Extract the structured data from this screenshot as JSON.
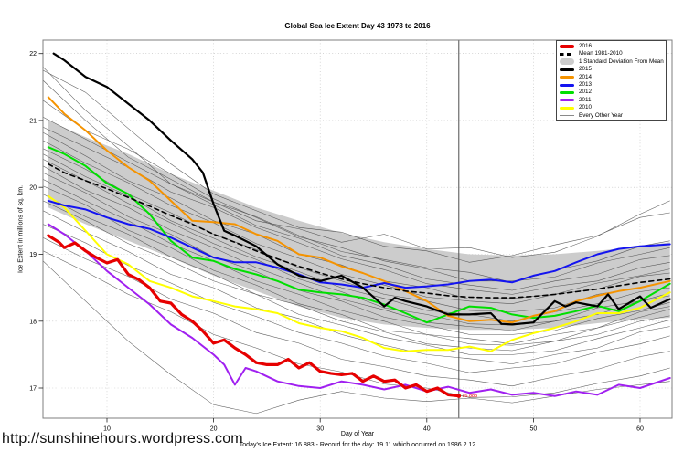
{
  "title": "Global Sea Ice Extent Day 43 1978 to 2016",
  "url_text": "http://sunshinehours.wordpress.com",
  "chart_data": {
    "type": "line",
    "title": "Global Sea Ice Extent Day 43 1978 to 2016",
    "xlabel": "Day of Year",
    "ylabel": "Ice Extent in millions of sq. km.",
    "caption": "Today's Ice Extent: 16.883  - Record for the day: 19.11 which occurred on 1986 2 12",
    "xlim": [
      4,
      63
    ],
    "ylim": [
      16.55,
      22.2
    ],
    "xticks": [
      10,
      20,
      30,
      40,
      50,
      60
    ],
    "yticks": [
      17,
      18,
      19,
      20,
      21,
      22
    ],
    "grid": "dotted",
    "vline_day": 43,
    "annotation": {
      "text": "16.883",
      "day": 43,
      "value": 16.883,
      "color": "#e60000"
    },
    "band": {
      "label": "1 Standard Deviation From Mean",
      "color": "#cccccc",
      "days": [
        4.5,
        8,
        12,
        16,
        20,
        24,
        28,
        32,
        36,
        40,
        44,
        48,
        52,
        56,
        60,
        62.8
      ],
      "top": [
        21.0,
        20.75,
        20.5,
        20.2,
        19.95,
        19.7,
        19.5,
        19.32,
        19.18,
        19.08,
        19.0,
        18.98,
        19.0,
        19.05,
        19.12,
        19.18
      ],
      "bottom": [
        19.7,
        19.45,
        19.2,
        18.95,
        18.68,
        18.45,
        18.22,
        18.05,
        17.95,
        17.9,
        17.87,
        17.87,
        17.9,
        17.97,
        18.03,
        18.05
      ]
    },
    "series": [
      {
        "name": "2010",
        "color": "#ffff00",
        "width": 2.0,
        "dash": "",
        "days": [
          4.5,
          6,
          8,
          10,
          12,
          14,
          16,
          18,
          20,
          22,
          24,
          26,
          28,
          30,
          32,
          34,
          36,
          38,
          40,
          42,
          44,
          46,
          48,
          50,
          52,
          54,
          56,
          58,
          60,
          62.8
        ],
        "values": [
          19.87,
          19.7,
          19.35,
          19.0,
          18.85,
          18.6,
          18.5,
          18.37,
          18.3,
          18.22,
          18.18,
          18.12,
          17.97,
          17.9,
          17.85,
          17.75,
          17.6,
          17.55,
          17.57,
          17.57,
          17.62,
          17.55,
          17.72,
          17.82,
          17.9,
          18.0,
          18.12,
          18.12,
          18.2,
          18.43
        ]
      },
      {
        "name": "2011",
        "color": "#a020f0",
        "width": 2.0,
        "dash": "",
        "days": [
          4.5,
          6,
          8,
          10,
          12,
          14,
          16,
          18,
          20,
          21,
          22,
          23,
          24,
          26,
          28,
          30,
          32,
          34,
          36,
          38,
          40,
          42,
          44,
          46,
          48,
          50,
          52,
          54,
          56,
          58,
          60,
          62.8
        ],
        "values": [
          19.45,
          19.3,
          19.05,
          18.75,
          18.5,
          18.25,
          17.95,
          17.75,
          17.5,
          17.35,
          17.05,
          17.3,
          17.25,
          17.1,
          17.03,
          17.0,
          17.1,
          17.05,
          16.98,
          17.05,
          16.95,
          17.02,
          16.93,
          16.98,
          16.9,
          16.93,
          16.88,
          16.95,
          16.9,
          17.05,
          17.0,
          17.15
        ]
      },
      {
        "name": "2012",
        "color": "#00df00",
        "width": 2.0,
        "dash": "",
        "days": [
          4.5,
          6,
          8,
          10,
          12,
          14,
          16,
          18,
          20,
          22,
          24,
          26,
          28,
          30,
          32,
          34,
          36,
          38,
          40,
          42,
          44,
          46,
          48,
          50,
          52,
          54,
          56,
          58,
          60,
          62.8
        ],
        "values": [
          20.6,
          20.5,
          20.32,
          20.06,
          19.9,
          19.6,
          19.2,
          18.95,
          18.9,
          18.78,
          18.7,
          18.6,
          18.47,
          18.43,
          18.4,
          18.35,
          18.25,
          18.12,
          17.98,
          18.1,
          18.22,
          18.2,
          18.1,
          18.05,
          18.08,
          18.15,
          18.23,
          18.15,
          18.3,
          18.56
        ]
      },
      {
        "name": "2014",
        "color": "#f59300",
        "width": 2.0,
        "dash": "",
        "days": [
          4.5,
          6,
          8,
          10,
          12,
          14,
          16,
          18,
          20,
          22,
          24,
          26,
          28,
          30,
          32,
          34,
          36,
          38,
          40,
          42,
          44,
          46,
          48,
          50,
          52,
          54,
          56,
          58,
          60,
          62.8
        ],
        "values": [
          21.35,
          21.1,
          20.85,
          20.55,
          20.3,
          20.1,
          19.8,
          19.5,
          19.48,
          19.45,
          19.3,
          19.2,
          19.0,
          18.95,
          18.82,
          18.72,
          18.6,
          18.45,
          18.3,
          18.08,
          18.0,
          18.02,
          17.98,
          18.08,
          18.15,
          18.3,
          18.38,
          18.45,
          18.5,
          18.6
        ]
      },
      {
        "name": "2013",
        "color": "#1414f0",
        "width": 2.0,
        "dash": "",
        "days": [
          4.5,
          6,
          8,
          10,
          12,
          14,
          16,
          18,
          20,
          22,
          24,
          26,
          28,
          30,
          32,
          34,
          36,
          38,
          40,
          42,
          44,
          46,
          48,
          50,
          52,
          54,
          56,
          58,
          60,
          62.8
        ],
        "values": [
          19.8,
          19.73,
          19.67,
          19.55,
          19.45,
          19.38,
          19.25,
          19.1,
          18.95,
          18.88,
          18.88,
          18.8,
          18.7,
          18.58,
          18.55,
          18.5,
          18.57,
          18.5,
          18.52,
          18.55,
          18.6,
          18.62,
          18.58,
          18.68,
          18.75,
          18.88,
          19.0,
          19.08,
          19.12,
          19.15
        ]
      },
      {
        "name": "Mean 1981-2010",
        "color": "#000000",
        "width": 1.6,
        "dash": "5 4",
        "days": [
          4.5,
          6,
          8,
          10,
          12,
          14,
          16,
          18,
          20,
          22,
          24,
          26,
          28,
          30,
          32,
          34,
          36,
          38,
          40,
          42,
          44,
          46,
          48,
          50,
          52,
          54,
          56,
          58,
          60,
          62.8
        ],
        "values": [
          20.35,
          20.22,
          20.1,
          19.98,
          19.85,
          19.72,
          19.58,
          19.45,
          19.3,
          19.18,
          19.05,
          18.93,
          18.82,
          18.72,
          18.63,
          18.56,
          18.5,
          18.45,
          18.42,
          18.38,
          18.36,
          18.35,
          18.35,
          18.37,
          18.4,
          18.44,
          18.48,
          18.53,
          18.58,
          18.63
        ]
      },
      {
        "name": "2015",
        "color": "#000000",
        "width": 2.2,
        "dash": "",
        "days": [
          5,
          6,
          8,
          10,
          12,
          14,
          16,
          18,
          19,
          20,
          21,
          22,
          24,
          26,
          28,
          30,
          32,
          34,
          36,
          37,
          38,
          40,
          42,
          44,
          46,
          47,
          48,
          50,
          52,
          53,
          54,
          56,
          57,
          58,
          60,
          61,
          62.8
        ],
        "values": [
          22.0,
          21.9,
          21.65,
          21.5,
          21.25,
          21.0,
          20.7,
          20.42,
          20.22,
          19.75,
          19.35,
          19.28,
          19.12,
          18.85,
          18.68,
          18.6,
          18.68,
          18.5,
          18.22,
          18.35,
          18.3,
          18.22,
          18.1,
          18.1,
          18.12,
          17.96,
          17.95,
          17.98,
          18.3,
          18.22,
          18.28,
          18.22,
          18.4,
          18.18,
          18.37,
          18.2,
          18.33
        ]
      },
      {
        "name": "2016",
        "color": "#e60000",
        "width": 3.2,
        "dash": "",
        "days": [
          4.5,
          5.5,
          6,
          7,
          8,
          9,
          10,
          11,
          12,
          13,
          14,
          15,
          16,
          17,
          18,
          19,
          20,
          21,
          22,
          23,
          24,
          25,
          26,
          27,
          28,
          29,
          30,
          31,
          32,
          33,
          34,
          35,
          36,
          37,
          38,
          39,
          40,
          41,
          42,
          43
        ],
        "values": [
          19.28,
          19.18,
          19.1,
          19.17,
          19.05,
          18.95,
          18.87,
          18.92,
          18.7,
          18.62,
          18.5,
          18.3,
          18.27,
          18.1,
          18.0,
          17.85,
          17.67,
          17.72,
          17.6,
          17.5,
          17.38,
          17.35,
          17.35,
          17.43,
          17.3,
          17.38,
          17.25,
          17.22,
          17.2,
          17.22,
          17.1,
          17.18,
          17.1,
          17.12,
          17.0,
          17.05,
          16.95,
          17.0,
          16.9,
          16.883
        ]
      }
    ],
    "background": {
      "label": "Every Other Year",
      "color": "#4a4a4a",
      "width": 0.55,
      "days": [
        4,
        8,
        12,
        16,
        20,
        24,
        28,
        32,
        36,
        40,
        44,
        48,
        52,
        56,
        60,
        62.8
      ],
      "lines": [
        [
          21.8,
          21.15,
          20.62,
          20.05,
          19.78,
          19.5,
          19.38,
          19.18,
          19.3,
          19.08,
          19.1,
          18.95,
          19.03,
          19.27,
          19.6,
          19.8
        ],
        [
          21.75,
          21.42,
          20.88,
          20.35,
          19.9,
          19.65,
          19.4,
          19.33,
          19.12,
          19.05,
          18.88,
          18.98,
          19.14,
          19.28,
          19.55,
          19.62
        ],
        [
          21.6,
          21.0,
          20.45,
          20.12,
          19.78,
          19.56,
          19.28,
          19.04,
          18.92,
          18.8,
          18.73,
          18.58,
          18.76,
          18.9,
          19.12,
          19.2
        ],
        [
          21.3,
          20.85,
          20.57,
          20.2,
          19.83,
          19.55,
          19.26,
          19.1,
          18.9,
          18.78,
          18.6,
          18.6,
          18.66,
          18.87,
          19.0,
          19.1
        ],
        [
          21.05,
          20.72,
          20.38,
          20.05,
          19.74,
          19.43,
          19.24,
          18.98,
          18.84,
          18.63,
          18.54,
          18.46,
          18.6,
          18.7,
          18.92,
          18.98
        ],
        [
          20.9,
          20.6,
          20.3,
          19.93,
          19.7,
          19.4,
          19.17,
          18.93,
          18.77,
          18.56,
          18.47,
          18.4,
          18.52,
          18.6,
          18.8,
          18.88
        ],
        [
          20.82,
          20.47,
          20.1,
          19.84,
          19.5,
          19.3,
          19.0,
          18.84,
          18.6,
          18.5,
          18.33,
          18.34,
          18.4,
          18.57,
          18.68,
          18.78
        ],
        [
          20.7,
          20.36,
          20.07,
          19.73,
          19.47,
          19.16,
          18.94,
          18.7,
          18.54,
          18.36,
          18.3,
          18.26,
          18.4,
          18.48,
          18.67,
          18.72
        ],
        [
          20.58,
          20.27,
          19.9,
          19.62,
          19.3,
          19.07,
          18.8,
          18.6,
          18.4,
          18.3,
          18.16,
          18.14,
          18.2,
          18.4,
          18.5,
          18.6
        ],
        [
          20.5,
          20.16,
          19.87,
          19.5,
          19.24,
          18.96,
          18.74,
          18.5,
          18.34,
          18.16,
          18.1,
          18.0,
          18.14,
          18.26,
          18.44,
          18.5
        ],
        [
          20.42,
          20.1,
          19.76,
          19.47,
          19.16,
          18.92,
          18.63,
          18.44,
          18.2,
          18.1,
          17.96,
          17.94,
          18.0,
          18.2,
          18.3,
          18.42
        ],
        [
          20.32,
          19.96,
          19.7,
          19.36,
          19.1,
          18.8,
          18.57,
          18.33,
          18.17,
          17.98,
          17.92,
          17.86,
          18.0,
          18.1,
          18.3,
          18.38
        ],
        [
          20.22,
          19.92,
          19.56,
          19.3,
          18.96,
          18.74,
          18.46,
          18.3,
          18.06,
          17.94,
          17.8,
          17.8,
          17.86,
          18.04,
          18.16,
          18.28
        ],
        [
          20.12,
          19.8,
          19.5,
          19.16,
          18.9,
          18.6,
          18.4,
          18.16,
          18.0,
          17.8,
          17.74,
          17.66,
          17.8,
          17.9,
          18.14,
          18.22
        ],
        [
          20.02,
          19.74,
          19.36,
          19.1,
          18.76,
          18.54,
          18.26,
          18.1,
          17.86,
          17.8,
          17.66,
          17.64,
          17.7,
          17.9,
          18.06,
          18.18
        ],
        [
          19.9,
          19.56,
          19.3,
          18.96,
          18.7,
          18.4,
          18.24,
          18.0,
          17.84,
          17.66,
          17.6,
          17.56,
          17.7,
          17.8,
          18.0,
          18.08
        ],
        [
          19.8,
          19.5,
          19.16,
          18.9,
          18.6,
          18.4,
          18.1,
          17.94,
          17.76,
          17.64,
          17.5,
          17.5,
          17.56,
          17.74,
          17.9,
          18.02
        ],
        [
          19.65,
          19.33,
          19.04,
          18.7,
          18.5,
          18.2,
          18.04,
          17.8,
          17.64,
          17.5,
          17.44,
          17.36,
          17.5,
          17.6,
          17.84,
          17.92
        ],
        [
          19.45,
          19.17,
          18.83,
          18.57,
          18.28,
          18.07,
          17.83,
          17.67,
          17.48,
          17.37,
          17.23,
          17.3,
          17.36,
          17.54,
          17.66,
          17.78
        ],
        [
          19.25,
          18.93,
          18.67,
          18.33,
          18.12,
          17.83,
          17.67,
          17.43,
          17.32,
          17.18,
          17.12,
          17.03,
          17.17,
          17.28,
          17.47,
          17.55
        ],
        [
          19.05,
          18.74,
          18.4,
          18.14,
          17.8,
          17.6,
          17.36,
          17.24,
          17.06,
          17.0,
          16.86,
          16.87,
          16.93,
          17.07,
          17.18,
          17.3
        ],
        [
          18.9,
          18.3,
          17.7,
          17.2,
          16.75,
          16.62,
          16.82,
          16.95,
          16.85,
          16.8,
          16.85,
          16.78,
          16.88,
          16.98,
          17.05,
          17.1
        ]
      ]
    },
    "legend": {
      "position": "top-right",
      "items": [
        {
          "label": "2016",
          "swatch": "thick",
          "color": "#e60000"
        },
        {
          "label": "Mean 1981-2010",
          "swatch": "dash",
          "color": "#000000"
        },
        {
          "label": "1 Standard Deviation From Mean",
          "swatch": "band",
          "color": "#cccccc"
        },
        {
          "label": "2015",
          "swatch": "med",
          "color": "#000000"
        },
        {
          "label": "2014",
          "swatch": "med",
          "color": "#f59300"
        },
        {
          "label": "2013",
          "swatch": "med",
          "color": "#1414f0"
        },
        {
          "label": "2012",
          "swatch": "med",
          "color": "#00df00"
        },
        {
          "label": "2011",
          "swatch": "med",
          "color": "#a020f0"
        },
        {
          "label": "2010",
          "swatch": "med",
          "color": "#ffff00"
        },
        {
          "label": "Every Other Year",
          "swatch": "thin",
          "color": "#8a8a8a"
        }
      ]
    }
  }
}
